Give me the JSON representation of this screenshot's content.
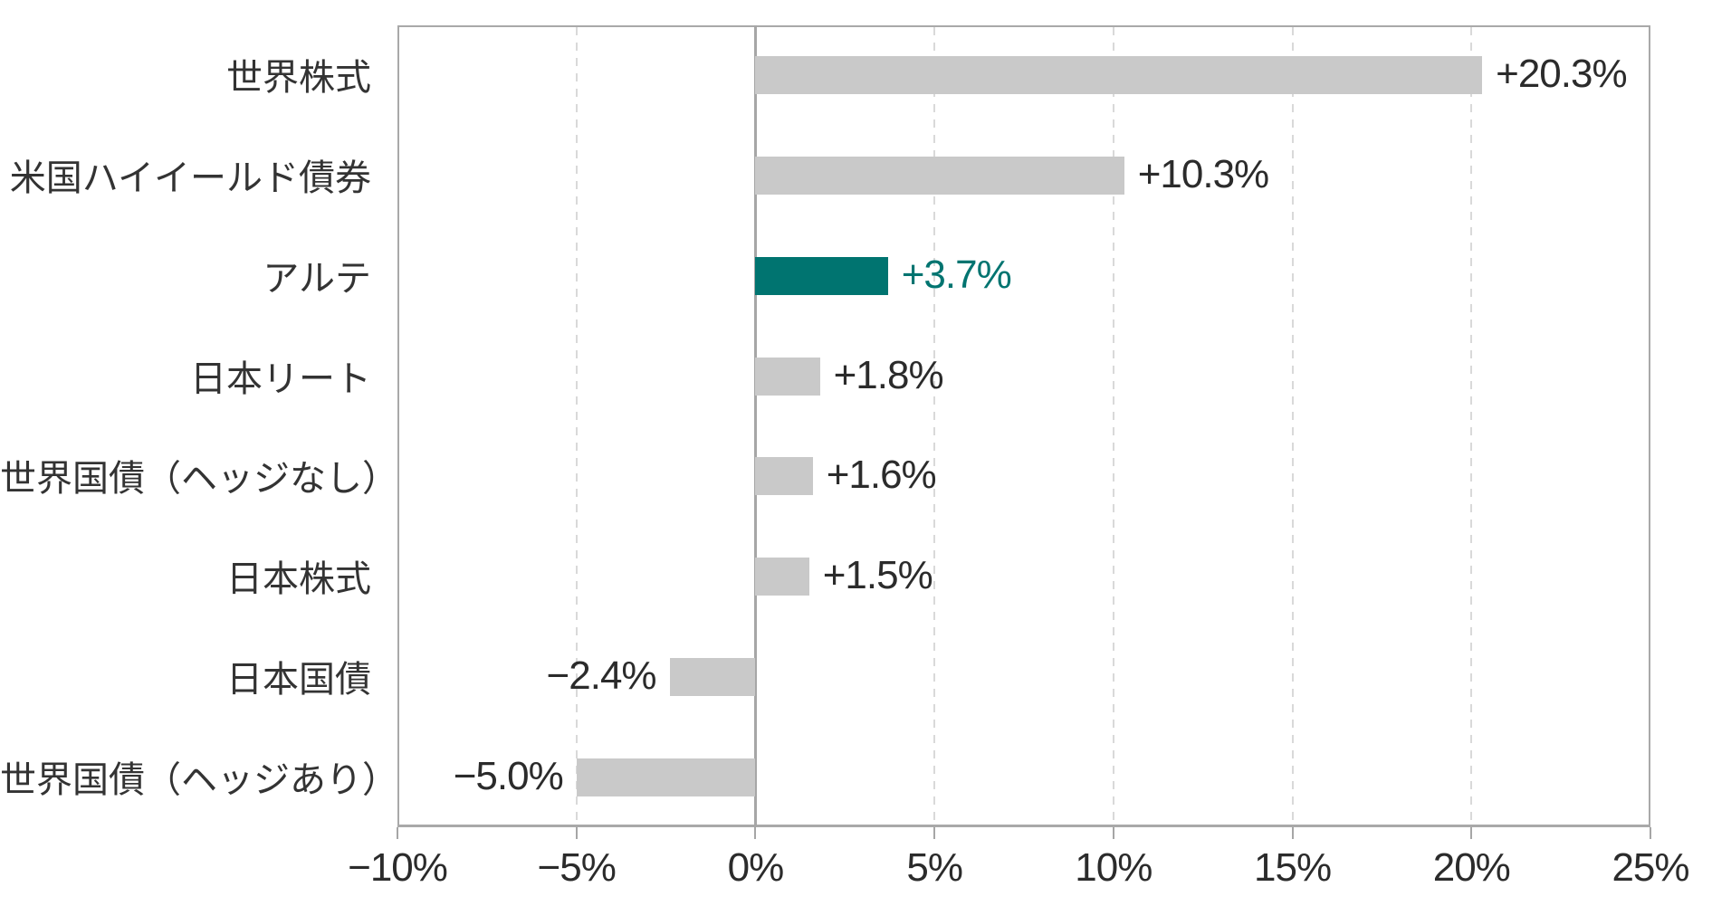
{
  "chart_data": {
    "type": "bar",
    "orientation": "horizontal",
    "title": "",
    "categories": [
      "世界株式",
      "米国ハイイールド債券",
      "アルテ",
      "日本リート",
      "世界国債（ヘッジなし）",
      "日本株式",
      "日本国債",
      "世界国債（ヘッジあり）"
    ],
    "values": [
      20.3,
      10.3,
      3.7,
      1.8,
      1.6,
      1.5,
      -2.4,
      -5.0
    ],
    "value_labels": [
      "+20.3%",
      "+10.3%",
      "+3.7%",
      "+1.8%",
      "+1.6%",
      "+1.5%",
      "−2.4%",
      "−5.0%"
    ],
    "highlight_index": 2,
    "xlim": [
      -10,
      25
    ],
    "x_ticks": [
      -10,
      -5,
      0,
      5,
      10,
      15,
      20,
      25
    ],
    "x_tick_labels": [
      "−10%",
      "−5%",
      "0%",
      "5%",
      "10%",
      "15%",
      "20%",
      "25%"
    ],
    "grid": "vertical-dashed-every-5pct",
    "legend": "none",
    "colors": {
      "bar_default": "#c9c9c9",
      "bar_highlight": "#007470",
      "value_label_default": "#2b2b2b",
      "value_label_highlight": "#007470",
      "category_label": "#333333",
      "axis_line": "#a6a6a6",
      "plot_border": "#a9a9a9",
      "gridline_dashed": "#d9d9d9",
      "background": "#ffffff"
    }
  }
}
